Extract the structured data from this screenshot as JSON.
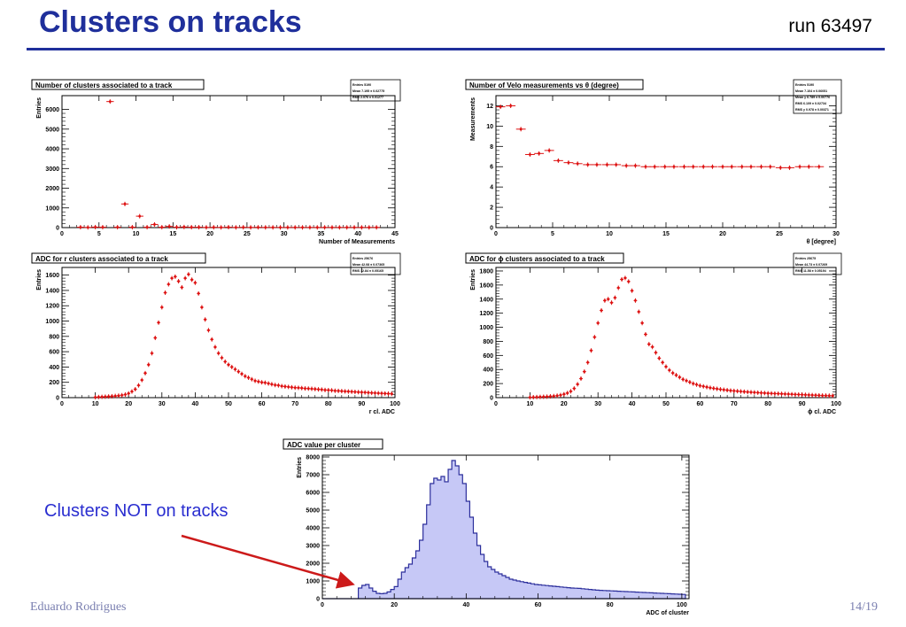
{
  "slide": {
    "title": "Clusters on tracks",
    "run": "run 63497",
    "author": "Eduardo Rodrigues",
    "page": "14/19",
    "annotation": "Clusters NOT on tracks"
  },
  "chart_data": [
    {
      "id": "clusters-per-track",
      "type": "scatter",
      "title": "Number of clusters associated to a track",
      "xlabel": "Number of Measurements",
      "ylabel": "Entries",
      "xlim": [
        0,
        45
      ],
      "ylim": [
        0,
        6700
      ],
      "xticks": [
        0,
        5,
        10,
        15,
        20,
        25,
        30,
        35,
        40,
        45
      ],
      "yticks": [
        0,
        1000,
        2000,
        3000,
        4000,
        5000,
        6000
      ],
      "bin_width": 1,
      "x": [
        2.5,
        3.5,
        4.5,
        5.5,
        6.5,
        7.5,
        8.5,
        9.5,
        10.5,
        11.5,
        12.5,
        13.5,
        14.5,
        15.5,
        16.5,
        17.5,
        18.5,
        19.5,
        20.5,
        21.5,
        22.5,
        23.5,
        24.5,
        25.5,
        26.5,
        27.5,
        28.5,
        29.5,
        30.5,
        31.5,
        32.5,
        33.5,
        34.5,
        35.5,
        36.5,
        37.5,
        38.5,
        39.5,
        40.5,
        41.5,
        42.5
      ],
      "y": [
        20,
        10,
        25,
        20,
        6400,
        20,
        1200,
        20,
        580,
        20,
        160,
        20,
        60,
        20,
        30,
        20,
        20,
        10,
        15,
        10,
        20,
        10,
        15,
        10,
        15,
        10,
        10,
        10,
        10,
        10,
        10,
        10,
        10,
        10,
        10,
        10,
        10,
        10,
        10,
        10,
        10
      ],
      "stats": {
        "entries": "Entries   5190",
        "mean": "Mean   7.195 ± 0.02775",
        "rms": "RMS   2.076 ± 0.01277"
      }
    },
    {
      "id": "velo-measurements-vs-theta",
      "type": "scatter",
      "title": "Number of Velo measurements vs θ (degree)",
      "xlabel": "θ [degree]",
      "ylabel": "Measurements",
      "xlim": [
        0,
        30
      ],
      "ylim": [
        0,
        13
      ],
      "xticks": [
        0,
        5,
        10,
        15,
        20,
        25,
        30
      ],
      "yticks": [
        0,
        2,
        4,
        6,
        8,
        10,
        12
      ],
      "bin_width": 0.85,
      "x": [
        0.4,
        1.3,
        2.2,
        3.0,
        3.8,
        4.7,
        5.5,
        6.4,
        7.2,
        8.1,
        8.9,
        9.8,
        10.6,
        11.5,
        12.3,
        13.2,
        14.0,
        14.9,
        15.7,
        16.6,
        17.4,
        18.3,
        19.1,
        20.0,
        20.8,
        21.7,
        22.5,
        23.4,
        24.2,
        25.1,
        25.9,
        26.8,
        27.6,
        28.5
      ],
      "y": [
        11.9,
        12.0,
        9.7,
        7.2,
        7.3,
        7.6,
        6.6,
        6.4,
        6.3,
        6.2,
        6.2,
        6.2,
        6.2,
        6.1,
        6.1,
        6.0,
        6.0,
        6.0,
        6.0,
        6.0,
        6.0,
        6.0,
        6.0,
        6.0,
        6.0,
        6.0,
        6.0,
        6.0,
        6.0,
        5.9,
        5.9,
        6.0,
        6.0,
        6.0
      ],
      "stats": {
        "entries": "Entries   5190",
        "mean": "Mean   7.104 ± 0.06051",
        "meany": "Mean y   6.789 ± 0.00776",
        "rms": "RMS   6.109 ± 0.02734",
        "rmsy": "RMS y   0.978 ± 0.00371"
      }
    },
    {
      "id": "adc-r-clusters",
      "type": "scatter",
      "title": "ADC for r clusters associated to a track",
      "xlabel": "r cl. ADC",
      "ylabel": "Entries",
      "xlim": [
        0,
        100
      ],
      "ylim": [
        0,
        1700
      ],
      "xticks": [
        0,
        10,
        20,
        30,
        40,
        50,
        60,
        70,
        80,
        90,
        100
      ],
      "yticks": [
        0,
        200,
        400,
        600,
        800,
        1000,
        1200,
        1400,
        1600
      ],
      "bin_width": 1,
      "x": [
        10,
        11,
        12,
        13,
        14,
        15,
        16,
        17,
        18,
        19,
        20,
        21,
        22,
        23,
        24,
        25,
        26,
        27,
        28,
        29,
        30,
        31,
        32,
        33,
        34,
        35,
        36,
        37,
        38,
        39,
        40,
        41,
        42,
        43,
        44,
        45,
        46,
        47,
        48,
        49,
        50,
        51,
        52,
        53,
        54,
        55,
        56,
        57,
        58,
        59,
        60,
        61,
        62,
        63,
        64,
        65,
        66,
        67,
        68,
        69,
        70,
        71,
        72,
        73,
        74,
        75,
        76,
        77,
        78,
        79,
        80,
        81,
        82,
        83,
        84,
        85,
        86,
        87,
        88,
        89,
        90,
        91,
        92,
        93,
        94,
        95,
        96,
        97,
        98,
        99
      ],
      "y": [
        5,
        8,
        10,
        12,
        15,
        18,
        22,
        26,
        32,
        40,
        55,
        80,
        110,
        160,
        230,
        320,
        430,
        580,
        780,
        980,
        1180,
        1370,
        1480,
        1560,
        1580,
        1520,
        1440,
        1560,
        1610,
        1540,
        1500,
        1360,
        1180,
        1020,
        880,
        760,
        660,
        580,
        520,
        470,
        430,
        400,
        370,
        340,
        310,
        280,
        260,
        240,
        220,
        210,
        200,
        195,
        185,
        175,
        165,
        160,
        150,
        145,
        140,
        135,
        130,
        128,
        125,
        120,
        118,
        115,
        112,
        108,
        105,
        100,
        98,
        95,
        90,
        88,
        85,
        82,
        80,
        78,
        75,
        72,
        70,
        68,
        65,
        62,
        60,
        58,
        56,
        54,
        52,
        50
      ],
      "stats": {
        "entries": "Entries   25676",
        "mean": "Mean   42.08 ± 0.07365",
        "rms": "RMS   12.84 ± 0.05165"
      }
    },
    {
      "id": "adc-phi-clusters",
      "type": "scatter",
      "title": "ADC for ϕ clusters associated to a track",
      "xlabel": "ϕ cl. ADC",
      "ylabel": "Entries",
      "xlim": [
        0,
        100
      ],
      "ylim": [
        0,
        1850
      ],
      "xticks": [
        0,
        10,
        20,
        30,
        40,
        50,
        60,
        70,
        80,
        90,
        100
      ],
      "yticks": [
        0,
        200,
        400,
        600,
        800,
        1000,
        1200,
        1400,
        1600,
        1800
      ],
      "bin_width": 1,
      "x": [
        10,
        11,
        12,
        13,
        14,
        15,
        16,
        17,
        18,
        19,
        20,
        21,
        22,
        23,
        24,
        25,
        26,
        27,
        28,
        29,
        30,
        31,
        32,
        33,
        34,
        35,
        36,
        37,
        38,
        39,
        40,
        41,
        42,
        43,
        44,
        45,
        46,
        47,
        48,
        49,
        50,
        51,
        52,
        53,
        54,
        55,
        56,
        57,
        58,
        59,
        60,
        61,
        62,
        63,
        64,
        65,
        66,
        67,
        68,
        69,
        70,
        71,
        72,
        73,
        74,
        75,
        76,
        77,
        78,
        79,
        80,
        81,
        82,
        83,
        84,
        85,
        86,
        87,
        88,
        89,
        90,
        91,
        92,
        93,
        94,
        95,
        96,
        97,
        98,
        99
      ],
      "y": [
        4,
        6,
        8,
        10,
        12,
        14,
        18,
        22,
        28,
        36,
        48,
        65,
        90,
        130,
        190,
        270,
        370,
        500,
        670,
        860,
        1060,
        1240,
        1380,
        1400,
        1350,
        1420,
        1560,
        1680,
        1700,
        1650,
        1520,
        1380,
        1220,
        1060,
        900,
        760,
        720,
        640,
        560,
        500,
        440,
        390,
        350,
        320,
        290,
        260,
        240,
        220,
        200,
        185,
        170,
        160,
        150,
        140,
        132,
        125,
        118,
        112,
        106,
        100,
        96,
        92,
        88,
        84,
        80,
        77,
        74,
        71,
        68,
        65,
        62,
        60,
        58,
        56,
        54,
        52,
        50,
        48,
        46,
        44,
        42,
        40,
        38,
        36,
        34,
        32,
        30,
        29,
        28,
        27
      ],
      "stats": {
        "entries": "Entries   25675",
        "mean": "Mean   44.73 ± 0.07269",
        "rms": "RMS   11.58 ± 0.05194"
      }
    },
    {
      "id": "adc-per-cluster",
      "type": "area",
      "title": "ADC value per cluster",
      "xlabel": "ADC of cluster",
      "ylabel": "Entries",
      "xlim": [
        0,
        102
      ],
      "ylim": [
        0,
        8100
      ],
      "xticks": [
        0,
        20,
        40,
        60,
        80,
        100
      ],
      "yticks": [
        0,
        1000,
        2000,
        3000,
        4000,
        5000,
        6000,
        7000,
        8000
      ],
      "bin_width": 1,
      "x": [
        0,
        1,
        2,
        3,
        4,
        5,
        6,
        7,
        8,
        9,
        10,
        11,
        12,
        13,
        14,
        15,
        16,
        17,
        18,
        19,
        20,
        21,
        22,
        23,
        24,
        25,
        26,
        27,
        28,
        29,
        30,
        31,
        32,
        33,
        34,
        35,
        36,
        37,
        38,
        39,
        40,
        41,
        42,
        43,
        44,
        45,
        46,
        47,
        48,
        49,
        50,
        51,
        52,
        53,
        54,
        55,
        56,
        57,
        58,
        59,
        60,
        61,
        62,
        63,
        64,
        65,
        66,
        67,
        68,
        69,
        70,
        71,
        72,
        73,
        74,
        75,
        76,
        77,
        78,
        79,
        80,
        81,
        82,
        83,
        84,
        85,
        86,
        87,
        88,
        89,
        90,
        91,
        92,
        93,
        94,
        95,
        96,
        97,
        98,
        99,
        100
      ],
      "y": [
        0,
        0,
        0,
        0,
        0,
        0,
        0,
        0,
        0,
        0,
        600,
        750,
        800,
        600,
        420,
        300,
        280,
        300,
        380,
        520,
        680,
        1100,
        1500,
        1750,
        1950,
        2300,
        2700,
        3300,
        4200,
        5300,
        6500,
        6800,
        6700,
        6900,
        6600,
        7300,
        7800,
        7500,
        7000,
        6500,
        5500,
        4600,
        3700,
        3000,
        2500,
        2100,
        1800,
        1650,
        1500,
        1400,
        1300,
        1200,
        1100,
        1050,
        1000,
        960,
        920,
        880,
        840,
        800,
        780,
        760,
        740,
        720,
        700,
        680,
        660,
        640,
        620,
        600,
        590,
        580,
        560,
        540,
        520,
        500,
        480,
        470,
        460,
        450,
        440,
        430,
        420,
        410,
        400,
        390,
        380,
        370,
        360,
        350,
        340,
        330,
        320,
        310,
        300,
        290,
        280,
        270,
        260,
        250,
        240
      ]
    }
  ]
}
